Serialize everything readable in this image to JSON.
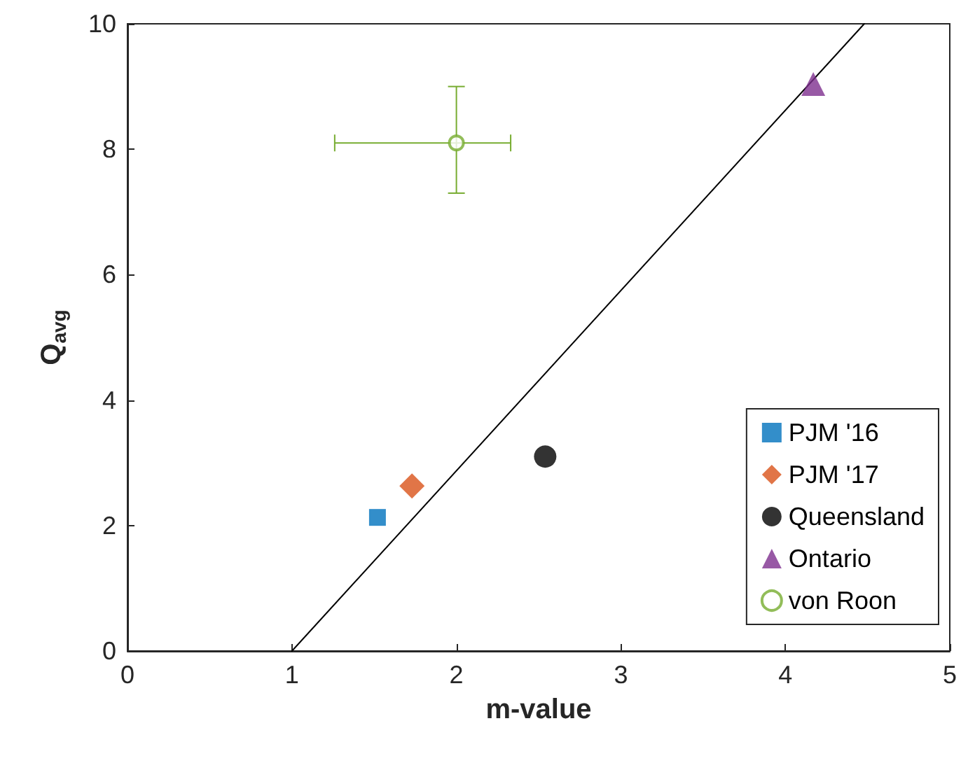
{
  "chart_data": {
    "type": "scatter",
    "xlabel": "m-value",
    "ylabel": "Q$_{avg}$",
    "xlim": [
      0,
      5
    ],
    "xticks": [
      0,
      1,
      2,
      3,
      4,
      5
    ],
    "ylim": [
      0,
      10
    ],
    "yticks": [
      0,
      2,
      4,
      6,
      8,
      10
    ],
    "grid": false,
    "legend": "bottom right",
    "series": [
      {
        "name": "PJM '16",
        "color": "#0072bd",
        "marker": "square",
        "x": [
          1.52
        ],
        "values": [
          2.13
        ]
      },
      {
        "name": "PJM '17",
        "color": "#d95319",
        "marker": "diamond",
        "x": [
          1.73
        ],
        "values": [
          2.63
        ]
      },
      {
        "name": "Queensland",
        "color": "#000000",
        "marker": "circle",
        "x": [
          2.54
        ],
        "values": [
          3.1
        ]
      },
      {
        "name": "Ontario",
        "color": "#7e2f8e",
        "marker": "triangle",
        "x": [
          4.17
        ],
        "values": [
          9.04
        ]
      },
      {
        "name": "von Roon",
        "color": "#77ac30",
        "marker": "circle",
        "x": [
          2.0
        ],
        "values": [
          8.1
        ],
        "errors": [
          [
            7.3,
            9.0
          ]
        ],
        "xerrors": [
          [
            1.26,
            2.33
          ]
        ]
      },
      {
        "type": "line",
        "color": "#000000",
        "marker": "none",
        "x": [
          1,
          4.48
        ],
        "values": [
          0,
          10
        ]
      }
    ]
  }
}
